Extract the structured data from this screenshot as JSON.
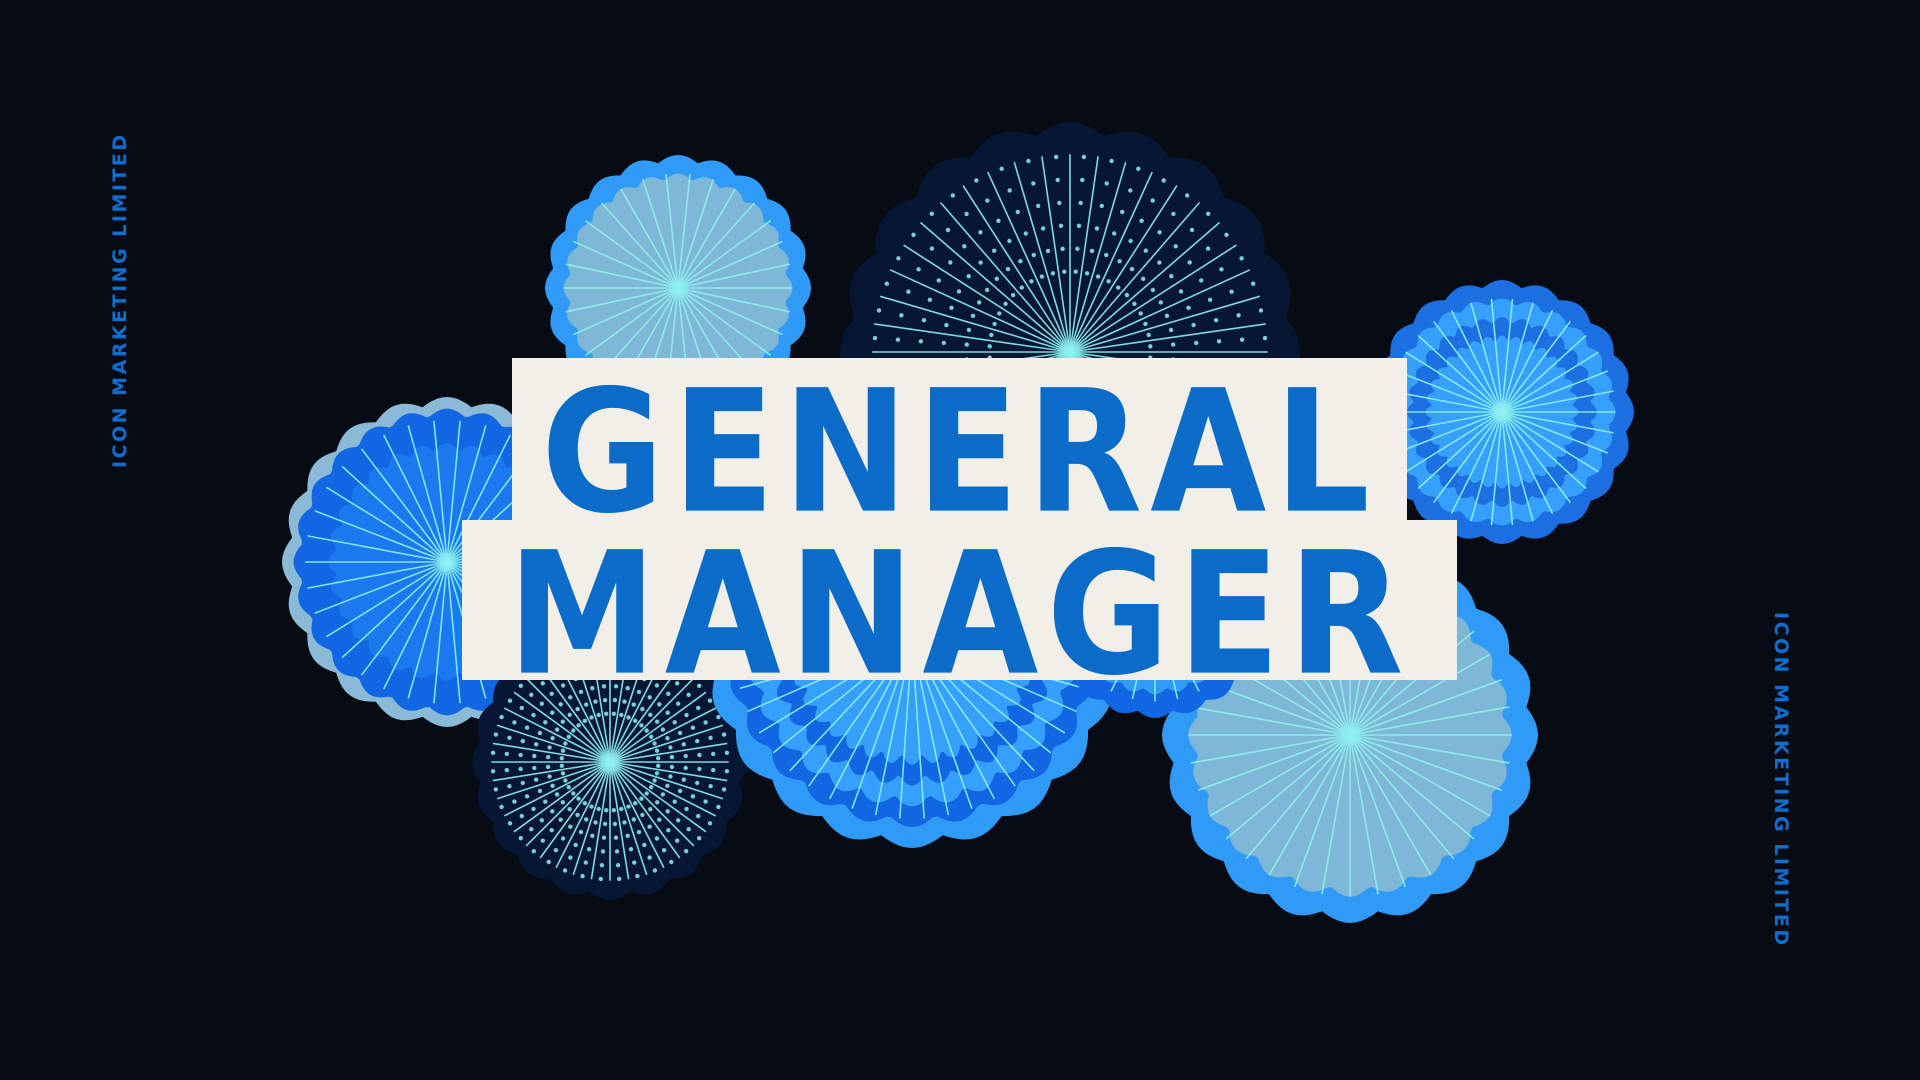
{
  "title": {
    "line1": "GENERAL",
    "line2": "MANAGER"
  },
  "company": {
    "left": "ICON MARKETING LIMITED",
    "right": "ICON MARKETING LIMITED"
  },
  "colors": {
    "background": "#070b14",
    "text_blue": "#0a6bc9",
    "title_box": "#f2efe8",
    "ray": "#8ff1ef"
  },
  "decoration": {
    "type": "paper-fan-rosettes",
    "count": 8
  }
}
